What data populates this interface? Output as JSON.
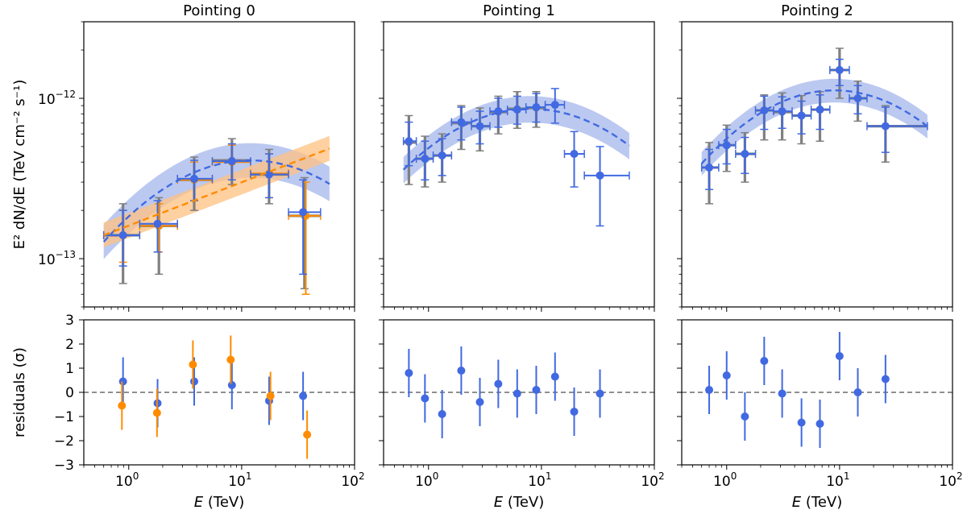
{
  "chart_data": {
    "type": "scatter",
    "colors": {
      "blue": "#4169e1",
      "band_blue": "#aabbee",
      "orange": "#ff8c00",
      "band_orange": "#ffc080",
      "gray": "#808080"
    },
    "shared": {
      "xlabel": "E (TeV)",
      "ylabel_top": "E² dN/dE (TeV cm⁻² s⁻¹)",
      "ylabel_bottom": "residuals (σ)",
      "xlim": [
        0.4,
        100
      ],
      "ylim_top": [
        5e-14,
        3e-12
      ],
      "ylim_bottom": [
        -3,
        3
      ],
      "xticks": [
        {
          "v": 1,
          "base": "10",
          "exp": "0"
        },
        {
          "v": 10,
          "base": "10",
          "exp": "1"
        },
        {
          "v": 100,
          "base": "10",
          "exp": "2"
        }
      ],
      "yticks_top": [
        {
          "v": 1e-13,
          "base": "10",
          "exp": "−13"
        },
        {
          "v": 1e-12,
          "base": "10",
          "exp": "−12"
        }
      ],
      "yticks_bottom": [
        {
          "v": 3,
          "label": "3"
        },
        {
          "v": 2,
          "label": "2"
        },
        {
          "v": 1,
          "label": "1"
        },
        {
          "v": 0,
          "label": "0"
        },
        {
          "v": -1,
          "label": "−1"
        },
        {
          "v": -2,
          "label": "−2"
        },
        {
          "v": -3,
          "label": "−3"
        }
      ]
    },
    "panels": [
      {
        "title": "Pointing 0",
        "models": [
          {
            "kind": "logparabola",
            "color": "blue",
            "band": "band_blue",
            "amp": 4.1e-13,
            "peak": 12,
            "beta": 0.3,
            "band_lo": 0.78,
            "band_hi": 1.28,
            "xmin": 0.6,
            "xmax": 60
          },
          {
            "kind": "powerlaw",
            "color": "orange",
            "band": "band_orange",
            "amp": 1.4e-13,
            "e0": 0.6,
            "index": 0.27,
            "band_lo": 0.84,
            "band_hi": 1.2,
            "xmin": 0.6,
            "xmax": 60
          }
        ],
        "points": [
          {
            "series": "gray",
            "x": 0.89,
            "y": 1.4e-13,
            "xlo": 0.6,
            "xhi": 1.25,
            "ylo": 7e-14,
            "yhi": 2.2e-13,
            "thick": true
          },
          {
            "series": "gray",
            "x": 1.85,
            "y": 1.6e-13,
            "xlo": 1.25,
            "xhi": 2.7,
            "ylo": 8e-14,
            "yhi": 2.4e-13,
            "thick": true
          },
          {
            "series": "gray",
            "x": 3.8,
            "y": 3.1e-13,
            "xlo": 2.7,
            "xhi": 5.5,
            "ylo": 2e-13,
            "yhi": 4.3e-13,
            "thick": true
          },
          {
            "series": "gray",
            "x": 8.2,
            "y": 4.1e-13,
            "xlo": 5.5,
            "xhi": 12,
            "ylo": 2.9e-13,
            "yhi": 5.6e-13,
            "thick": true
          },
          {
            "series": "gray",
            "x": 17.5,
            "y": 3.35e-13,
            "xlo": 12,
            "xhi": 26,
            "ylo": 2.2e-13,
            "yhi": 4.8e-13,
            "thick": true
          },
          {
            "series": "gray",
            "x": 36,
            "y": 1.85e-13,
            "xlo": 26,
            "xhi": 50,
            "ylo": 6.5e-14,
            "yhi": 3.2e-13,
            "thick": true
          },
          {
            "series": "orange",
            "x": 0.89,
            "y": 1.4e-13,
            "xlo": 0.6,
            "xhi": 1.25,
            "ylo": 9.5e-14,
            "yhi": 2e-13
          },
          {
            "series": "orange",
            "x": 1.85,
            "y": 1.6e-13,
            "xlo": 1.25,
            "xhi": 2.7,
            "ylo": 1.1e-13,
            "yhi": 2.2e-13
          },
          {
            "series": "orange",
            "x": 3.8,
            "y": 3.1e-13,
            "xlo": 2.7,
            "xhi": 5.5,
            "ylo": 2.3e-13,
            "yhi": 4e-13
          },
          {
            "series": "orange",
            "x": 8.2,
            "y": 4e-13,
            "xlo": 5.5,
            "xhi": 12,
            "ylo": 3.1e-13,
            "yhi": 5.1e-13
          },
          {
            "series": "orange",
            "x": 17.5,
            "y": 3.4e-13,
            "xlo": 12,
            "xhi": 26,
            "ylo": 2.4e-13,
            "yhi": 4.5e-13
          },
          {
            "series": "orange",
            "x": 37,
            "y": 1.85e-13,
            "xlo": 26,
            "xhi": 50,
            "ylo": 6e-14,
            "yhi": 3e-13
          },
          {
            "series": "blue",
            "x": 0.89,
            "y": 1.4e-13,
            "xlo": 0.6,
            "xhi": 1.25,
            "ylo": 9e-14,
            "yhi": 2e-13
          },
          {
            "series": "blue",
            "x": 1.8,
            "y": 1.65e-13,
            "xlo": 1.25,
            "xhi": 2.7,
            "ylo": 1.1e-13,
            "yhi": 2.3e-13
          },
          {
            "series": "blue",
            "x": 3.8,
            "y": 3.15e-13,
            "xlo": 2.7,
            "xhi": 5.5,
            "ylo": 2.3e-13,
            "yhi": 4.1e-13
          },
          {
            "series": "blue",
            "x": 8.2,
            "y": 4.05e-13,
            "xlo": 5.5,
            "xhi": 12,
            "ylo": 3.1e-13,
            "yhi": 5.2e-13
          },
          {
            "series": "blue",
            "x": 17.5,
            "y": 3.35e-13,
            "xlo": 12,
            "xhi": 26,
            "ylo": 2.4e-13,
            "yhi": 4.5e-13
          },
          {
            "series": "blue",
            "x": 35,
            "y": 1.95e-13,
            "xlo": 26,
            "xhi": 50,
            "ylo": 8e-14,
            "yhi": 3.1e-13
          }
        ],
        "residuals": [
          {
            "series": "blue",
            "x": 0.89,
            "y": 0.45,
            "err": 1.0
          },
          {
            "series": "blue",
            "x": 1.8,
            "y": -0.45,
            "err": 1.0
          },
          {
            "series": "blue",
            "x": 3.8,
            "y": 0.45,
            "err": 1.0
          },
          {
            "series": "blue",
            "x": 8.2,
            "y": 0.3,
            "err": 1.0
          },
          {
            "series": "blue",
            "x": 17.5,
            "y": -0.35,
            "err": 1.0
          },
          {
            "series": "blue",
            "x": 35,
            "y": -0.15,
            "err": 1.0
          },
          {
            "series": "orange",
            "x": 0.87,
            "y": -0.55,
            "err": 1.0
          },
          {
            "series": "orange",
            "x": 1.78,
            "y": -0.85,
            "err": 1.0
          },
          {
            "series": "orange",
            "x": 3.7,
            "y": 1.15,
            "err": 1.0
          },
          {
            "series": "orange",
            "x": 8.0,
            "y": 1.35,
            "err": 1.0
          },
          {
            "series": "orange",
            "x": 18,
            "y": -0.15,
            "err": 1.0
          },
          {
            "series": "orange",
            "x": 38,
            "y": -1.75,
            "err": 1.0
          }
        ]
      },
      {
        "title": "Pointing 1",
        "models": [
          {
            "kind": "logparabola",
            "color": "blue",
            "band": "band_blue",
            "amp": 8.6e-13,
            "peak": 8,
            "beta": 0.3,
            "band_lo": 0.82,
            "band_hi": 1.2,
            "xmin": 0.6,
            "xmax": 60
          }
        ],
        "points": [
          {
            "series": "gray",
            "x": 0.67,
            "y": 5.3e-13,
            "xlo": 0.6,
            "xhi": 0.78,
            "ylo": 2.9e-13,
            "yhi": 7.8e-13,
            "thick": true
          },
          {
            "series": "gray",
            "x": 0.93,
            "y": 4.2e-13,
            "xlo": 0.78,
            "xhi": 1.1,
            "ylo": 2.8e-13,
            "yhi": 5.8e-13,
            "thick": true
          },
          {
            "series": "gray",
            "x": 1.32,
            "y": 4.4e-13,
            "xlo": 1.1,
            "xhi": 1.6,
            "ylo": 3e-13,
            "yhi": 6e-13,
            "thick": true
          },
          {
            "series": "gray",
            "x": 1.95,
            "y": 7e-13,
            "xlo": 1.6,
            "xhi": 2.4,
            "ylo": 4.8e-13,
            "yhi": 9e-13,
            "thick": true
          },
          {
            "series": "gray",
            "x": 2.85,
            "y": 6.7e-13,
            "xlo": 2.4,
            "xhi": 3.5,
            "ylo": 4.7e-13,
            "yhi": 8.7e-13,
            "thick": true
          },
          {
            "series": "gray",
            "x": 4.15,
            "y": 8.2e-13,
            "xlo": 3.5,
            "xhi": 5.0,
            "ylo": 6e-13,
            "yhi": 1.03e-12,
            "thick": true
          },
          {
            "series": "gray",
            "x": 6.1,
            "y": 8.6e-13,
            "xlo": 5.0,
            "xhi": 7.3,
            "ylo": 6.5e-13,
            "yhi": 1.1e-12,
            "thick": true
          },
          {
            "series": "gray",
            "x": 9.0,
            "y": 8.7e-13,
            "xlo": 7.3,
            "xhi": 10.8,
            "ylo": 6.6e-13,
            "yhi": 1.1e-12,
            "thick": true
          },
          {
            "series": "blue",
            "x": 0.67,
            "y": 5.4e-13,
            "xlo": 0.6,
            "xhi": 0.78,
            "ylo": 3.8e-13,
            "yhi": 7.1e-13
          },
          {
            "series": "blue",
            "x": 0.93,
            "y": 4.2e-13,
            "xlo": 0.78,
            "xhi": 1.1,
            "ylo": 3.1e-13,
            "yhi": 5.4e-13
          },
          {
            "series": "blue",
            "x": 1.32,
            "y": 4.4e-13,
            "xlo": 1.1,
            "xhi": 1.6,
            "ylo": 3.3e-13,
            "yhi": 5.6e-13
          },
          {
            "series": "blue",
            "x": 1.95,
            "y": 7.1e-13,
            "xlo": 1.6,
            "xhi": 2.4,
            "ylo": 5.5e-13,
            "yhi": 8.8e-13
          },
          {
            "series": "blue",
            "x": 2.85,
            "y": 6.7e-13,
            "xlo": 2.4,
            "xhi": 3.5,
            "ylo": 5.2e-13,
            "yhi": 8.3e-13
          },
          {
            "series": "blue",
            "x": 4.15,
            "y": 8.3e-13,
            "xlo": 3.5,
            "xhi": 5.0,
            "ylo": 6.6e-13,
            "yhi": 1e-12
          },
          {
            "series": "blue",
            "x": 6.1,
            "y": 8.5e-13,
            "xlo": 5.0,
            "xhi": 7.3,
            "ylo": 6.9e-13,
            "yhi": 1.03e-12
          },
          {
            "series": "blue",
            "x": 9.0,
            "y": 8.8e-13,
            "xlo": 7.3,
            "xhi": 10.8,
            "ylo": 7.1e-13,
            "yhi": 1.07e-12
          },
          {
            "series": "blue",
            "x": 13.2,
            "y": 9.1e-13,
            "xlo": 10.8,
            "xhi": 16,
            "ylo": 7e-13,
            "yhi": 1.15e-12
          },
          {
            "series": "blue",
            "x": 19.5,
            "y": 4.5e-13,
            "xlo": 16,
            "xhi": 24,
            "ylo": 2.8e-13,
            "yhi": 6.2e-13
          },
          {
            "series": "blue",
            "x": 33,
            "y": 3.3e-13,
            "xlo": 24,
            "xhi": 60,
            "ylo": 1.6e-13,
            "yhi": 5e-13
          }
        ],
        "residuals": [
          {
            "series": "blue",
            "x": 0.67,
            "y": 0.8,
            "err": 1.0
          },
          {
            "series": "blue",
            "x": 0.93,
            "y": -0.25,
            "err": 1.0
          },
          {
            "series": "blue",
            "x": 1.32,
            "y": -0.9,
            "err": 1.0
          },
          {
            "series": "blue",
            "x": 1.95,
            "y": 0.9,
            "err": 1.0
          },
          {
            "series": "blue",
            "x": 2.85,
            "y": -0.4,
            "err": 1.0
          },
          {
            "series": "blue",
            "x": 4.15,
            "y": 0.35,
            "err": 1.0
          },
          {
            "series": "blue",
            "x": 6.1,
            "y": -0.05,
            "err": 1.0
          },
          {
            "series": "blue",
            "x": 9.0,
            "y": 0.1,
            "err": 1.0
          },
          {
            "series": "blue",
            "x": 13.2,
            "y": 0.65,
            "err": 1.0
          },
          {
            "series": "blue",
            "x": 19.5,
            "y": -0.8,
            "err": 1.0
          },
          {
            "series": "blue",
            "x": 33,
            "y": -0.05,
            "err": 1.0
          }
        ]
      },
      {
        "title": "Pointing 2",
        "models": [
          {
            "kind": "logparabola",
            "color": "blue",
            "band": "band_blue",
            "amp": 1.12e-12,
            "peak": 9,
            "beta": 0.33,
            "band_lo": 0.84,
            "band_hi": 1.18,
            "xmin": 0.6,
            "xmax": 60
          }
        ],
        "points": [
          {
            "series": "gray",
            "x": 0.7,
            "y": 3.7e-13,
            "xlo": 0.6,
            "xhi": 0.85,
            "ylo": 2.2e-13,
            "yhi": 5.3e-13,
            "thick": true
          },
          {
            "series": "gray",
            "x": 1.0,
            "y": 5.1e-13,
            "xlo": 0.85,
            "xhi": 1.2,
            "ylo": 3.5e-13,
            "yhi": 6.8e-13,
            "thick": true
          },
          {
            "series": "gray",
            "x": 1.45,
            "y": 4.5e-13,
            "xlo": 1.2,
            "xhi": 1.8,
            "ylo": 3e-13,
            "yhi": 6.1e-13,
            "thick": true
          },
          {
            "series": "gray",
            "x": 2.15,
            "y": 8.4e-13,
            "xlo": 1.8,
            "xhi": 2.6,
            "ylo": 5.5e-13,
            "yhi": 1.05e-12,
            "thick": true
          },
          {
            "series": "gray",
            "x": 3.1,
            "y": 8.2e-13,
            "xlo": 2.6,
            "xhi": 3.8,
            "ylo": 5.5e-13,
            "yhi": 1.08e-12,
            "thick": true
          },
          {
            "series": "gray",
            "x": 4.6,
            "y": 7.8e-13,
            "xlo": 3.8,
            "xhi": 5.6,
            "ylo": 5.2e-13,
            "yhi": 1.04e-12,
            "thick": true
          },
          {
            "series": "gray",
            "x": 6.7,
            "y": 8.5e-13,
            "xlo": 5.6,
            "xhi": 8.2,
            "ylo": 5.4e-13,
            "yhi": 1.1e-12,
            "thick": true
          },
          {
            "series": "gray",
            "x": 10.0,
            "y": 1.5e-12,
            "xlo": 8.2,
            "xhi": 12.2,
            "ylo": 1e-12,
            "yhi": 2.05e-12,
            "thick": true
          },
          {
            "series": "gray",
            "x": 14.5,
            "y": 1e-12,
            "xlo": 12.2,
            "xhi": 17.5,
            "ylo": 7.2e-13,
            "yhi": 1.28e-12,
            "thick": true
          },
          {
            "series": "gray",
            "x": 25.5,
            "y": 6.7e-13,
            "xlo": 17.5,
            "xhi": 60,
            "ylo": 4e-13,
            "yhi": 9e-13,
            "thick": true
          },
          {
            "series": "blue",
            "x": 0.7,
            "y": 3.7e-13,
            "xlo": 0.6,
            "xhi": 0.85,
            "ylo": 2.7e-13,
            "yhi": 4.8e-13
          },
          {
            "series": "blue",
            "x": 1.0,
            "y": 5.1e-13,
            "xlo": 0.85,
            "xhi": 1.2,
            "ylo": 3.9e-13,
            "yhi": 6.4e-13
          },
          {
            "series": "blue",
            "x": 1.45,
            "y": 4.5e-13,
            "xlo": 1.2,
            "xhi": 1.8,
            "ylo": 3.4e-13,
            "yhi": 5.7e-13
          },
          {
            "series": "blue",
            "x": 2.15,
            "y": 8.4e-13,
            "xlo": 1.8,
            "xhi": 2.6,
            "ylo": 6.4e-13,
            "yhi": 1.03e-12
          },
          {
            "series": "blue",
            "x": 3.1,
            "y": 8.3e-13,
            "xlo": 2.6,
            "xhi": 3.8,
            "ylo": 6.5e-13,
            "yhi": 1.02e-12
          },
          {
            "series": "blue",
            "x": 4.6,
            "y": 7.8e-13,
            "xlo": 3.8,
            "xhi": 5.6,
            "ylo": 6e-13,
            "yhi": 9.6e-13
          },
          {
            "series": "blue",
            "x": 6.7,
            "y": 8.5e-13,
            "xlo": 5.6,
            "xhi": 8.2,
            "ylo": 6.4e-13,
            "yhi": 1.05e-12
          },
          {
            "series": "blue",
            "x": 10.0,
            "y": 1.5e-12,
            "xlo": 8.2,
            "xhi": 12.2,
            "ylo": 1.2e-12,
            "yhi": 1.75e-12
          },
          {
            "series": "blue",
            "x": 14.5,
            "y": 1e-12,
            "xlo": 12.2,
            "xhi": 17.5,
            "ylo": 8e-13,
            "yhi": 1.2e-12
          },
          {
            "series": "blue",
            "x": 25.5,
            "y": 6.7e-13,
            "xlo": 17.5,
            "xhi": 60,
            "ylo": 4.6e-13,
            "yhi": 8.8e-13
          }
        ],
        "residuals": [
          {
            "series": "blue",
            "x": 0.7,
            "y": 0.1,
            "err": 1.0
          },
          {
            "series": "blue",
            "x": 1.0,
            "y": 0.7,
            "err": 1.0
          },
          {
            "series": "blue",
            "x": 1.45,
            "y": -1.0,
            "err": 1.0
          },
          {
            "series": "blue",
            "x": 2.15,
            "y": 1.3,
            "err": 1.0
          },
          {
            "series": "blue",
            "x": 3.1,
            "y": -0.05,
            "err": 1.0
          },
          {
            "series": "blue",
            "x": 4.6,
            "y": -1.25,
            "err": 1.0
          },
          {
            "series": "blue",
            "x": 6.7,
            "y": -1.3,
            "err": 1.0
          },
          {
            "series": "blue",
            "x": 10.0,
            "y": 1.5,
            "err": 1.0
          },
          {
            "series": "blue",
            "x": 14.5,
            "y": 0.0,
            "err": 1.0
          },
          {
            "series": "blue",
            "x": 25.5,
            "y": 0.55,
            "err": 1.0
          }
        ]
      }
    ]
  }
}
